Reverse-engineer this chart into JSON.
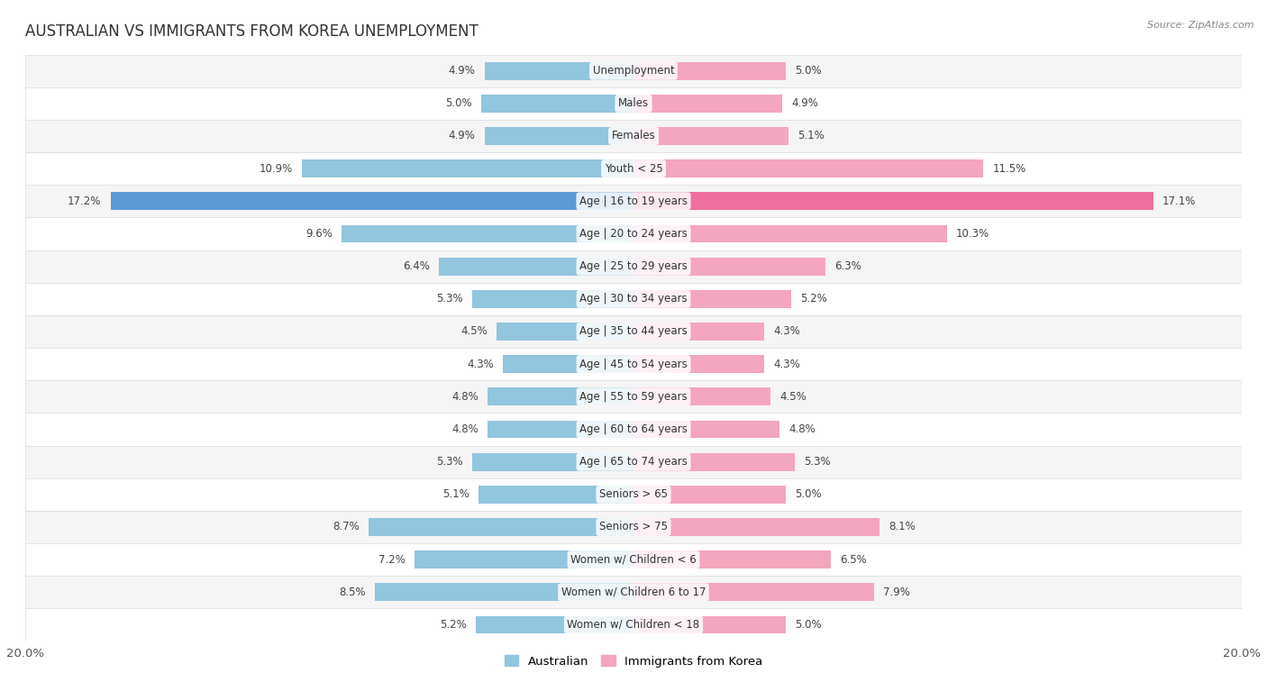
{
  "title": "AUSTRALIAN VS IMMIGRANTS FROM KOREA UNEMPLOYMENT",
  "source": "Source: ZipAtlas.com",
  "categories": [
    "Unemployment",
    "Males",
    "Females",
    "Youth < 25",
    "Age | 16 to 19 years",
    "Age | 20 to 24 years",
    "Age | 25 to 29 years",
    "Age | 30 to 34 years",
    "Age | 35 to 44 years",
    "Age | 45 to 54 years",
    "Age | 55 to 59 years",
    "Age | 60 to 64 years",
    "Age | 65 to 74 years",
    "Seniors > 65",
    "Seniors > 75",
    "Women w/ Children < 6",
    "Women w/ Children 6 to 17",
    "Women w/ Children < 18"
  ],
  "australian": [
    4.9,
    5.0,
    4.9,
    10.9,
    17.2,
    9.6,
    6.4,
    5.3,
    4.5,
    4.3,
    4.8,
    4.8,
    5.3,
    5.1,
    8.7,
    7.2,
    8.5,
    5.2
  ],
  "korea": [
    5.0,
    4.9,
    5.1,
    11.5,
    17.1,
    10.3,
    6.3,
    5.2,
    4.3,
    4.3,
    4.5,
    4.8,
    5.3,
    5.0,
    8.1,
    6.5,
    7.9,
    5.0
  ],
  "australian_color": "#92C5DE",
  "korea_color": "#F4A6BE",
  "australian_highlight": "#5B9BD5",
  "korea_highlight": "#EE6FA0",
  "background_color": "#ffffff",
  "row_odd_color": "#f5f5f5",
  "row_even_color": "#ffffff",
  "separator_color": "#dddddd",
  "xlim": 20.0,
  "bar_height": 0.55,
  "label_fontsize": 8.5,
  "category_fontsize": 8.5,
  "title_fontsize": 12,
  "legend_fontsize": 9.5
}
